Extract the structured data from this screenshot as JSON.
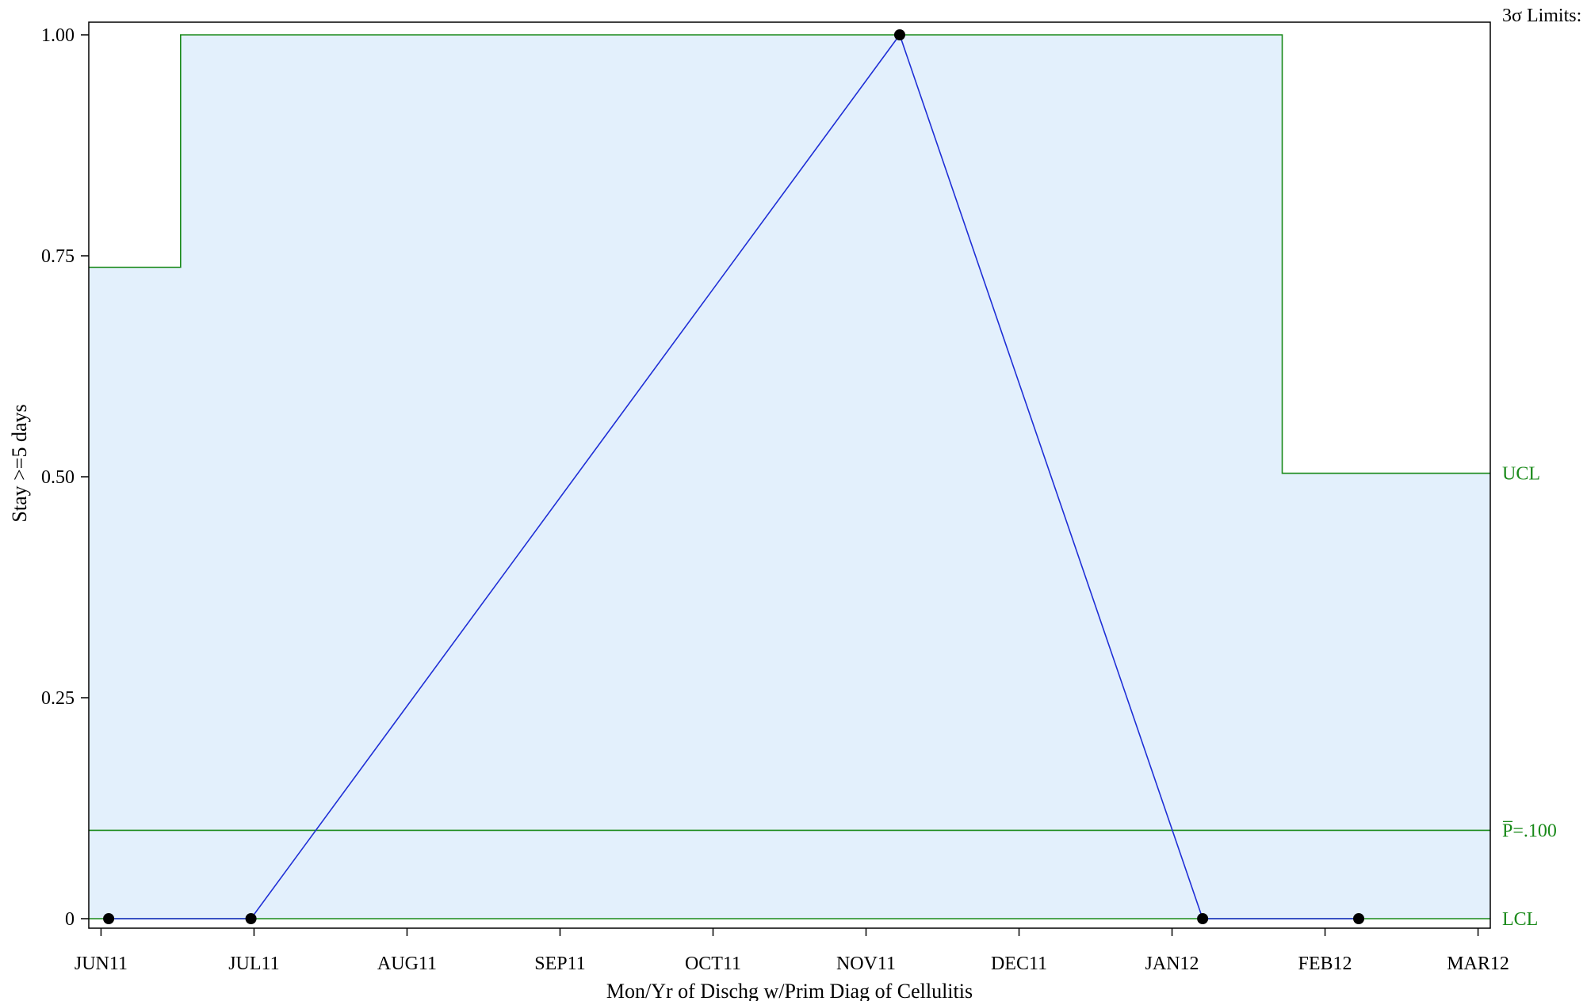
{
  "chart_data": {
    "type": "line",
    "subtype": "p-chart",
    "xlabel": "Mon/Yr of Dischg w/Prim Diag of Cellulitis",
    "ylabel": "Stay >=5 days",
    "x_tick_labels": [
      "JUN11",
      "JUL11",
      "AUG11",
      "SEP11",
      "OCT11",
      "NOV11",
      "DEC11",
      "JAN12",
      "FEB12",
      "MAR12"
    ],
    "ylim": [
      0,
      1
    ],
    "y_ticks": [
      0,
      0.25,
      0.5,
      0.75,
      1.0
    ],
    "y_tick_labels": [
      "0",
      "0.25",
      "0.50",
      "0.75",
      "1.00"
    ],
    "xlim": [
      -0.08,
      9.08
    ],
    "grid": false,
    "limits_header": "3σ Limits:",
    "center_line": {
      "label": "P̅=.100",
      "value": 0.1
    },
    "ucl_label": "UCL",
    "lcl_label": "LCL",
    "series": [
      {
        "x": [
          0.05,
          0.98,
          5.22,
          7.2,
          8.22
        ],
        "values": [
          0,
          0,
          1,
          0,
          0
        ]
      }
    ],
    "ucl_steps": [
      {
        "x0": -0.08,
        "x1": 0.52,
        "value": 0.737
      },
      {
        "x0": 0.52,
        "x1": 7.72,
        "value": 1.0
      },
      {
        "x0": 7.72,
        "x1": 9.08,
        "value": 0.504
      }
    ],
    "lcl": 0,
    "colors": {
      "series": "#1f2fd6",
      "limits": "#1a8a1a",
      "band": "#e3f0fc",
      "marker": "#000000"
    }
  }
}
